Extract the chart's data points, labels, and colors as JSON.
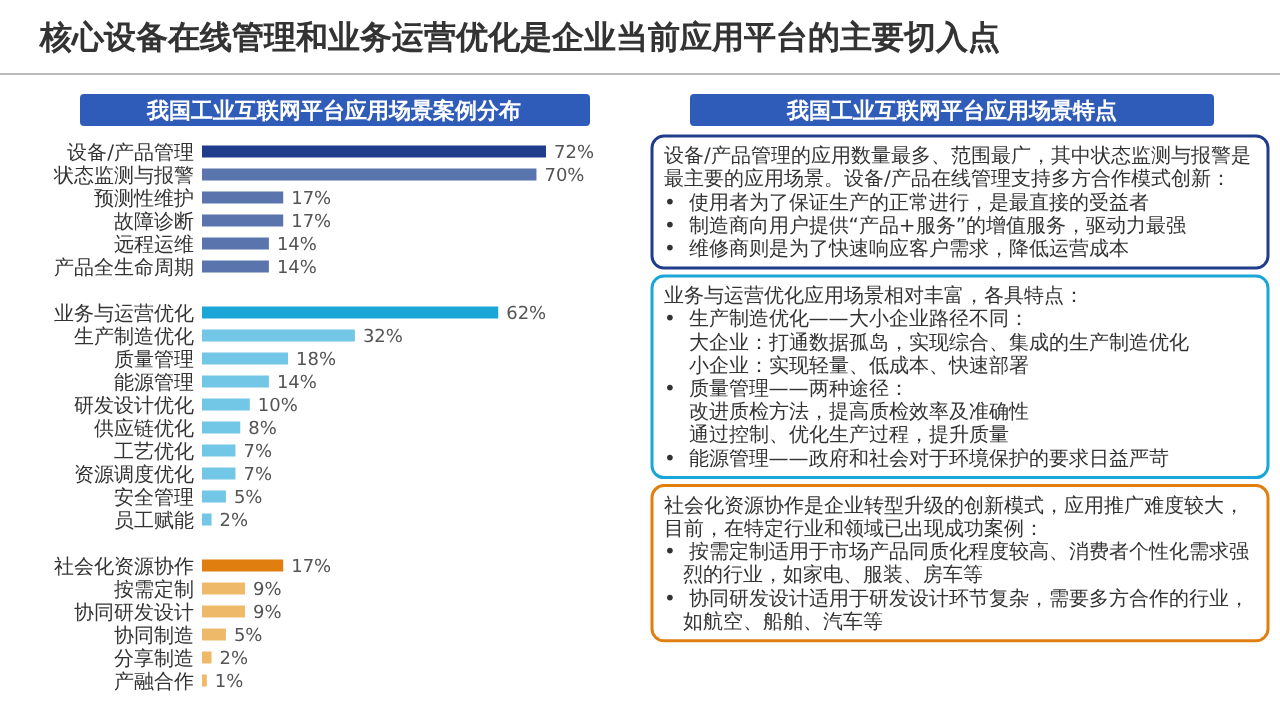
{
  "chart_data": [
    {
      "type": "bar",
      "orientation": "horizontal",
      "title": "核心设备在线管理和业务运营优化是企业当前应用平台的主要切入点",
      "subtitle": "我国工业互联网平台应用场景案例分布",
      "categories": [
        "设备/产品管理",
        "状态监测与报警",
        "预测性维护",
        "故障诊断",
        "远程运维",
        "产品全生命周期",
        null,
        "业务与运营优化",
        "生产制造优化",
        "质量管理",
        "能源管理",
        "研发设计优化",
        "供应链优化",
        "工艺优化",
        "资源调度优化",
        "安全管理",
        "员工赋能",
        null,
        "社会化资源协作",
        "按需定制",
        "协同研发设计",
        "协同制造",
        "分享制造",
        "产融合作"
      ],
      "values": [
        72,
        70,
        17,
        17,
        14,
        14,
        null,
        62,
        32,
        18,
        14,
        10,
        8,
        7,
        7,
        5,
        2,
        null,
        17,
        9,
        9,
        5,
        2,
        1
      ],
      "value_labels": [
        "72%",
        "70%",
        "17%",
        "17%",
        "14%",
        "14%",
        null,
        "62%",
        "32%",
        "18%",
        "14%",
        "10%",
        "8%",
        "7%",
        "7%",
        "5%",
        "2%",
        null,
        "17%",
        "9%",
        "9%",
        "5%",
        "2%",
        "1%"
      ],
      "colors": [
        "#1f3d8a",
        "#5a74ad",
        "#5a74ad",
        "#5a74ad",
        "#5a74ad",
        "#5a74ad",
        null,
        "#1aa6d6",
        "#72c6e6",
        "#72c6e6",
        "#72c6e6",
        "#72c6e6",
        "#72c6e6",
        "#72c6e6",
        "#72c6e6",
        "#72c6e6",
        "#72c6e6",
        null,
        "#e07f10",
        "#efb96a",
        "#efb96a",
        "#efb96a",
        "#efb96a",
        "#efb96a"
      ]
    },
    {
      "type": "other",
      "title": "我国工业互联网平台应用场景特点",
      "annotations": [
        "设备/产品管理的应用数量最多、范围最广，其中状态监测与报警是最主要的应用场景。设备/产品在线管理支持多方合作模式创新：",
        "•  使用者为了保证生产的正常进行，是最直接的受益者",
        "•  制造商向用户提供“产品+服务”的增值服务，驱动力最强",
        "•  维修商则是为了快速响应客户需求，降低运营成本"
      ]
    },
    {
      "type": "other",
      "annotations": [
        "业务与运营优化应用场景相对丰富，各具特点：",
        "•  生产制造优化——大小企业路径不同：",
        "    大企业：打通数据孤岛，实现综合、集成的生产制造优化",
        "    小企业：实现轻量、低成本、快速部署",
        "•  质量管理——两种途径：",
        "    改进质检方法，提高质检效率及准确性",
        "    通过控制、优化生产过程，提升质量",
        "•  能源管理——政府和社会对于环境保护的要求日益严苛"
      ]
    },
    {
      "type": "other",
      "annotations": [
        "社会化资源协作是企业转型升级的创新模式，应用推广难度较大，目前，在特定行业和领域已出现成功案例：",
        "•  按需定制适用于市场产品同质化程度较高、消费者个性化需求强烈的行业，如家电、服装、房车等",
        "•  协同研发设计适用于研发设计环节复杂，需要多方合作的行业，如航空、船舶、汽车等"
      ]
    }
  ]
}
